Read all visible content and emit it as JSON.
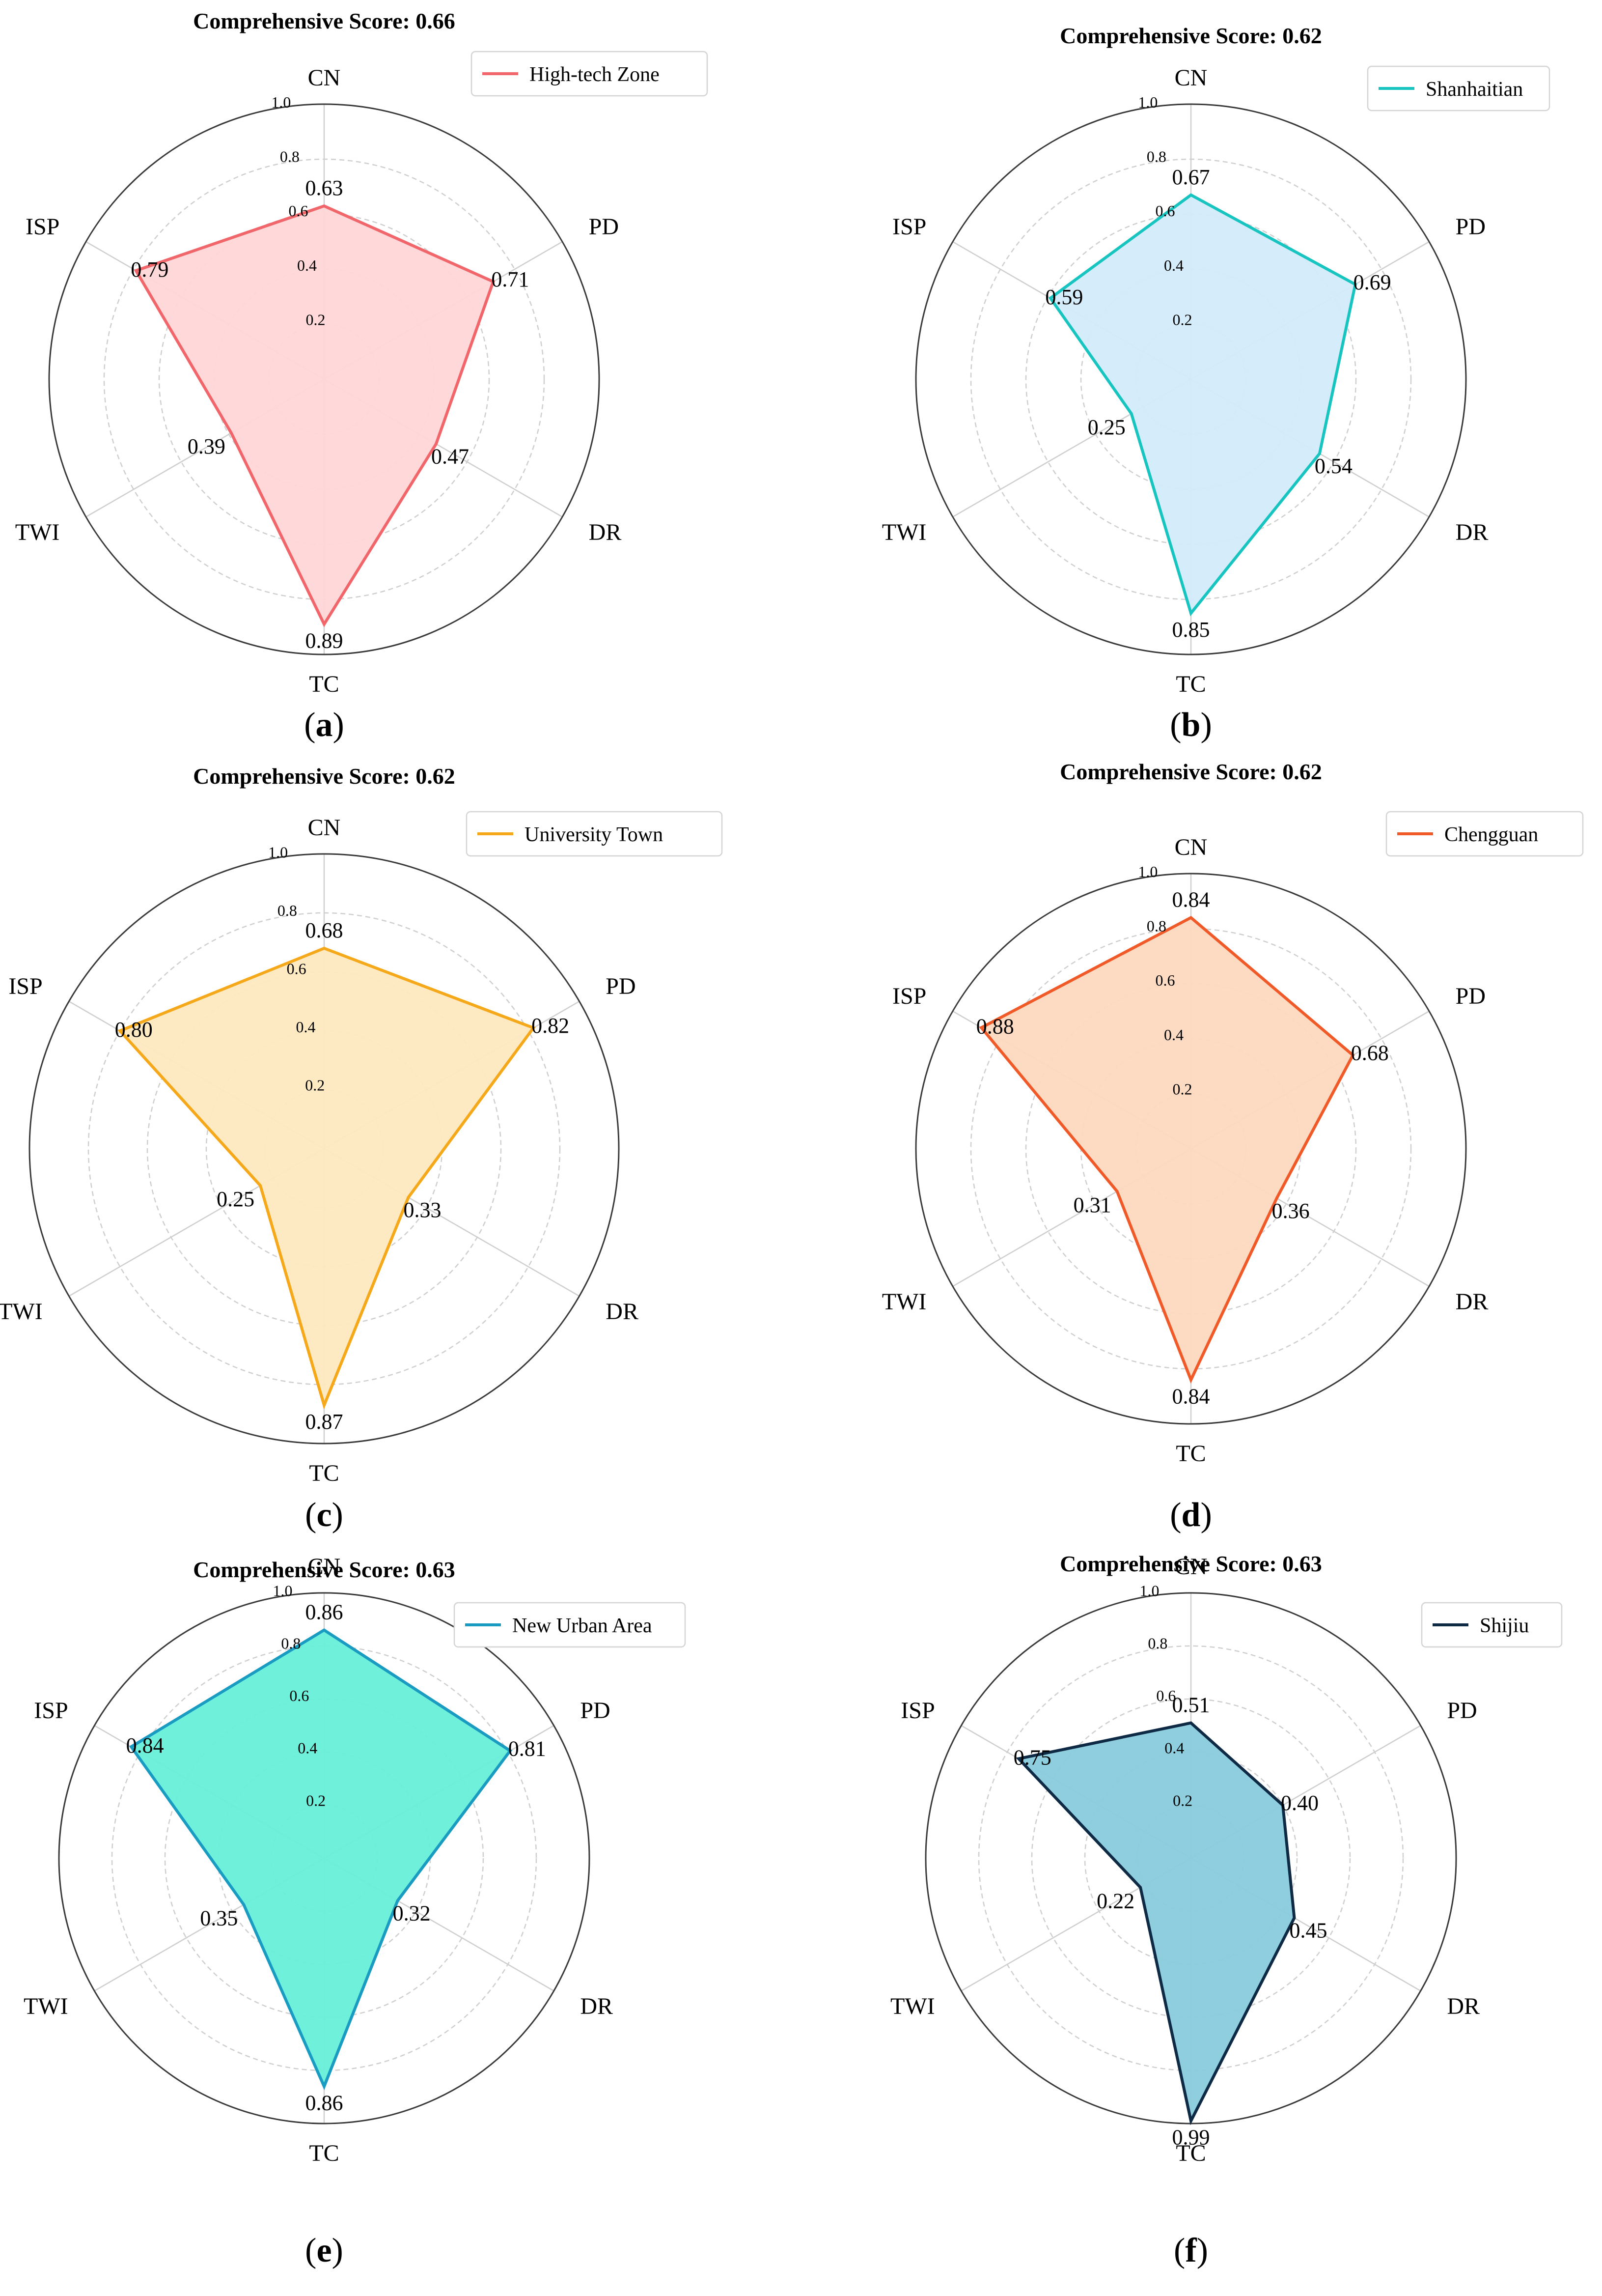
{
  "chart_data": [
    {
      "type": "radar",
      "panel": "(a)",
      "panel_letter": "a",
      "title": "Comprehensive Score: 0.66",
      "series_name": "High-tech Zone",
      "axes": [
        "CN",
        "PD",
        "DR",
        "TC",
        "TWI",
        "ISP"
      ],
      "values": [
        0.63,
        0.71,
        0.47,
        0.89,
        0.39,
        0.79
      ],
      "value_labels": [
        "0.63",
        "0.71",
        "0.47",
        "0.89",
        "0.39",
        "0.79"
      ],
      "rlim": [
        0,
        1.0
      ],
      "rticks": [
        "0.2",
        "0.4",
        "0.6",
        "0.8",
        "1.0"
      ],
      "line_color": "#f0666a",
      "fill_color": "#ffd6d7",
      "legend_position": "top-right"
    },
    {
      "type": "radar",
      "panel": "(b)",
      "panel_letter": "b",
      "title": "Comprehensive Score: 0.62",
      "series_name": "Shanhaitian",
      "axes": [
        "CN",
        "PD",
        "DR",
        "TC",
        "TWI",
        "ISP"
      ],
      "values": [
        0.67,
        0.69,
        0.54,
        0.85,
        0.25,
        0.59
      ],
      "value_labels": [
        "0.67",
        "0.69",
        "0.54",
        "0.85",
        "0.25",
        "0.59"
      ],
      "rlim": [
        0,
        1.0
      ],
      "rticks": [
        "0.2",
        "0.4",
        "0.6",
        "0.8",
        "1.0"
      ],
      "line_color": "#18c4c0",
      "fill_color": "#d3ecfb",
      "legend_position": "top-right"
    },
    {
      "type": "radar",
      "panel": "(c)",
      "panel_letter": "c",
      "title": "Comprehensive Score: 0.62",
      "series_name": "University Town",
      "axes": [
        "CN",
        "PD",
        "DR",
        "TC",
        "TWI",
        "ISP"
      ],
      "values": [
        0.68,
        0.82,
        0.33,
        0.87,
        0.25,
        0.8
      ],
      "value_labels": [
        "0.68",
        "0.82",
        "0.33",
        "0.87",
        "0.25",
        "0.80"
      ],
      "rlim": [
        0,
        1.0
      ],
      "rticks": [
        "0.2",
        "0.4",
        "0.6",
        "0.8",
        "1.0"
      ],
      "line_color": "#f5a91a",
      "fill_color": "#fde9c0",
      "legend_position": "top-right"
    },
    {
      "type": "radar",
      "panel": "(d)",
      "panel_letter": "d",
      "title": "Comprehensive Score: 0.62",
      "series_name": "Chengguan",
      "axes": [
        "CN",
        "PD",
        "DR",
        "TC",
        "TWI",
        "ISP"
      ],
      "values": [
        0.84,
        0.68,
        0.36,
        0.84,
        0.31,
        0.88
      ],
      "value_labels": [
        "0.84",
        "0.68",
        "0.36",
        "0.84",
        "0.31",
        "0.88"
      ],
      "rlim": [
        0,
        1.0
      ],
      "rticks": [
        "0.2",
        "0.4",
        "0.6",
        "0.8",
        "1.0"
      ],
      "line_color": "#f05a28",
      "fill_color": "#fdd8bf",
      "legend_position": "top-right"
    },
    {
      "type": "radar",
      "panel": "(e)",
      "panel_letter": "e",
      "title": "Comprehensive Score: 0.63",
      "series_name": "New Urban Area",
      "axes": [
        "CN",
        "PD",
        "DR",
        "TC",
        "TWI",
        "ISP"
      ],
      "values": [
        0.86,
        0.81,
        0.32,
        0.86,
        0.35,
        0.84
      ],
      "value_labels": [
        "0.86",
        "0.81",
        "0.32",
        "0.86",
        "0.35",
        "0.84"
      ],
      "rlim": [
        0,
        1.0
      ],
      "rticks": [
        "0.2",
        "0.4",
        "0.6",
        "0.8",
        "1.0"
      ],
      "line_color": "#1a9bc2",
      "fill_color": "#66efd9",
      "legend_position": "top-right"
    },
    {
      "type": "radar",
      "panel": "(f)",
      "panel_letter": "f",
      "title": "Comprehensive Score: 0.63",
      "series_name": "Shijiu",
      "axes": [
        "CN",
        "PD",
        "DR",
        "TC",
        "TWI",
        "ISP"
      ],
      "values": [
        0.51,
        0.4,
        0.45,
        0.99,
        0.22,
        0.75
      ],
      "value_labels": [
        "0.51",
        "0.40",
        "0.45",
        "0.99",
        "0.22",
        "0.75"
      ],
      "rlim": [
        0,
        1.0
      ],
      "rticks": [
        "0.2",
        "0.4",
        "0.6",
        "0.8",
        "1.0"
      ],
      "line_color": "#0e2a44",
      "fill_color": "#88cbdc",
      "legend_position": "top-right"
    }
  ]
}
